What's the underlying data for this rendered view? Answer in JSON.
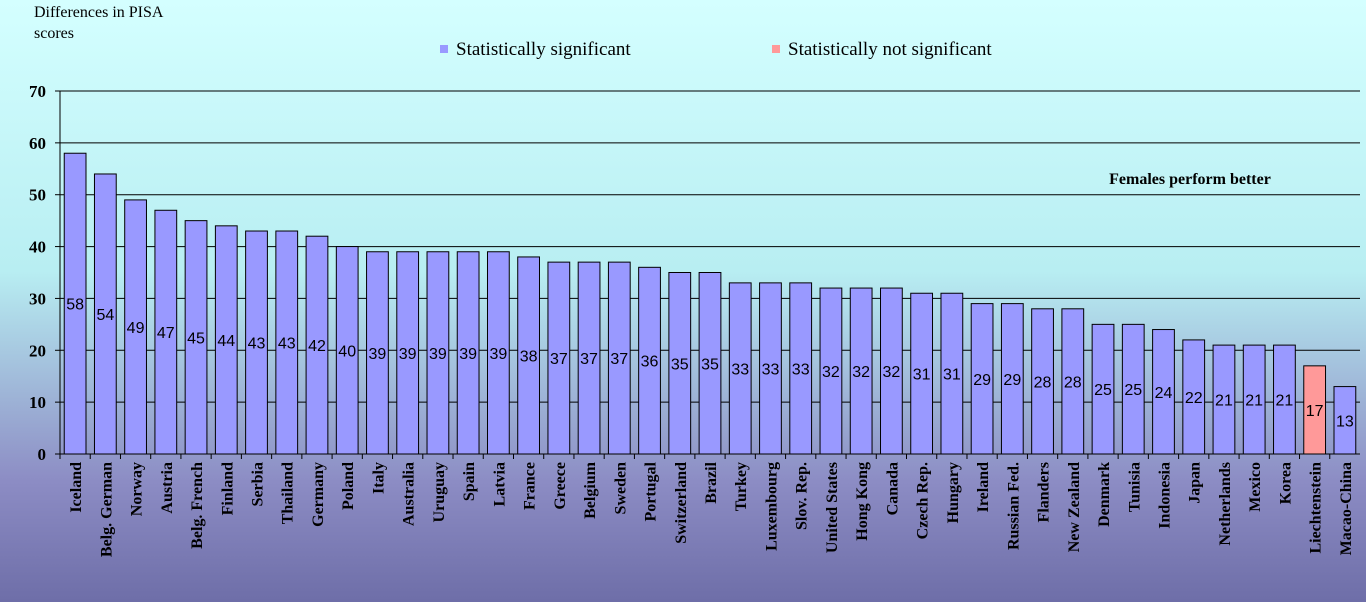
{
  "chart_data": {
    "type": "bar",
    "ylabel": "Differences in PISA scores",
    "annotation": "Females perform better",
    "categories": [
      "Iceland",
      "Belg. German",
      "Norway",
      "Austria",
      "Belg. French",
      "Finland",
      "Serbia",
      "Thailand",
      "Germany",
      "Poland",
      "Italy",
      "Australia",
      "Uruguay",
      "Spain",
      "Latvia",
      "France",
      "Greece",
      "Belgium",
      "Sweden",
      "Portugal",
      "Switzerland",
      "Brazil",
      "Turkey",
      "Luxembourg",
      "Slov. Rep.",
      "United States",
      "Hong Kong",
      "Canada",
      "Czech Rep.",
      "Hungary",
      "Ireland",
      "Russian Fed.",
      "Flanders",
      "New Zealand",
      "Denmark",
      "Tunisia",
      "Indonesia",
      "Japan",
      "Netherlands",
      "Mexico",
      "Korea",
      "Liechtenstein",
      "Macao-China"
    ],
    "series": [
      {
        "name": "Statistically significant",
        "color": "#9999ff",
        "values": [
          58,
          54,
          49,
          47,
          45,
          44,
          43,
          43,
          42,
          40,
          39,
          39,
          39,
          39,
          39,
          38,
          37,
          37,
          37,
          36,
          35,
          35,
          33,
          33,
          33,
          32,
          32,
          32,
          31,
          31,
          29,
          29,
          28,
          28,
          25,
          25,
          24,
          22,
          21,
          21,
          21,
          null,
          13
        ]
      },
      {
        "name": "Statistically not significant",
        "color": "#ff9999",
        "values": [
          null,
          null,
          null,
          null,
          null,
          null,
          null,
          null,
          null,
          null,
          null,
          null,
          null,
          null,
          null,
          null,
          null,
          null,
          null,
          null,
          null,
          null,
          null,
          null,
          null,
          null,
          null,
          null,
          null,
          null,
          null,
          null,
          null,
          null,
          null,
          null,
          null,
          null,
          null,
          null,
          null,
          17,
          null
        ]
      }
    ],
    "ylim": [
      0,
      70
    ],
    "yticks": [
      0,
      10,
      20,
      30,
      40,
      50,
      60,
      70
    ],
    "grid": true
  }
}
